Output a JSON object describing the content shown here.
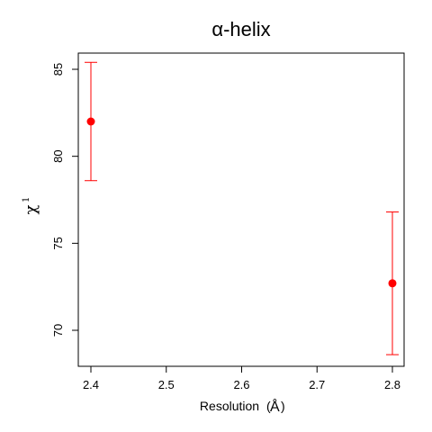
{
  "chart_data": {
    "type": "scatter",
    "title": "α-helix",
    "xlabel": "Resolution",
    "xlabel_unit": "Å",
    "ylabel": "χ",
    "ylabel_superscript": "1",
    "xlim": [
      2.4,
      2.8
    ],
    "ylim": [
      68,
      86
    ],
    "x_ticks": [
      2.4,
      2.5,
      2.6,
      2.7,
      2.8
    ],
    "x_tick_labels": [
      "2.4",
      "2.5",
      "2.6",
      "2.7",
      "2.8"
    ],
    "y_ticks": [
      70,
      75,
      80,
      85
    ],
    "y_tick_labels": [
      "70",
      "75",
      "80",
      "85"
    ],
    "grid": false,
    "legend": "none",
    "series": [
      {
        "color": "#ff0000",
        "points": [
          {
            "x": 2.4,
            "y": 82.0,
            "err_low": 78.6,
            "err_high": 85.4
          },
          {
            "x": 2.8,
            "y": 72.7,
            "err_low": 68.6,
            "err_high": 76.8
          }
        ]
      }
    ]
  }
}
